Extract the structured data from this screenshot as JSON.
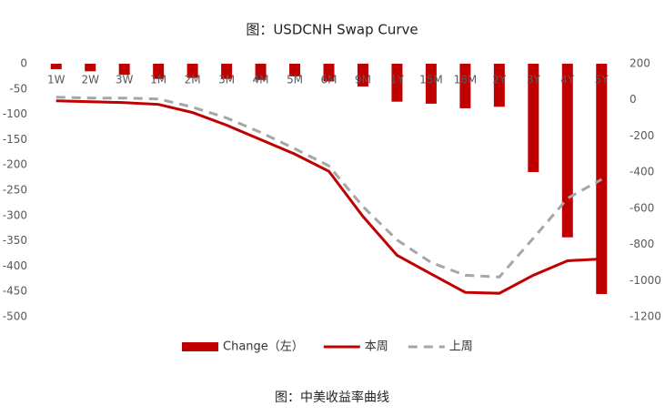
{
  "chart_data": {
    "type": "bar",
    "title": "图：USDCNH Swap Curve",
    "caption": "图：中美收益率曲线",
    "categories": [
      "1W",
      "2W",
      "3W",
      "1M",
      "2M",
      "3M",
      "4M",
      "5M",
      "6M",
      "9M",
      "1Y",
      "15M",
      "18M",
      "2Y",
      "3Y",
      "4Y",
      "5Y"
    ],
    "series": [
      {
        "name": "Change（左）",
        "type": "bar",
        "axis": "y",
        "color": "#c00000",
        "values": [
          -11,
          -15,
          -22,
          -30,
          -28,
          -30,
          -32,
          -25,
          -35,
          -45,
          -75,
          -79,
          -88,
          -85,
          -214,
          -343,
          -455
        ]
      },
      {
        "name": "本周",
        "type": "line",
        "axis": "y2",
        "color": "#c00000",
        "dashed": false,
        "values": [
          -5,
          -10,
          -15,
          -25,
          -70,
          -140,
          -220,
          -300,
          -395,
          -645,
          -860,
          -963,
          -1065,
          -1070,
          -970,
          -890,
          -880
        ]
      },
      {
        "name": "上周",
        "type": "line",
        "axis": "y2",
        "color": "#a6a6a6",
        "dashed": true,
        "values": [
          15,
          10,
          10,
          5,
          -40,
          -100,
          -180,
          -270,
          -365,
          -590,
          -775,
          -900,
          -970,
          -980,
          -765,
          -545,
          -440
        ]
      }
    ],
    "ylim": [
      -500,
      0
    ],
    "yticks": [
      0,
      -50,
      -100,
      -150,
      -200,
      -250,
      -300,
      -350,
      -400,
      -450,
      -500
    ],
    "y2lim": [
      -1200,
      200
    ],
    "y2ticks": [
      200,
      0,
      -200,
      -400,
      -600,
      -800,
      -1000,
      -1200
    ],
    "grid": false,
    "legend": "bottom"
  }
}
